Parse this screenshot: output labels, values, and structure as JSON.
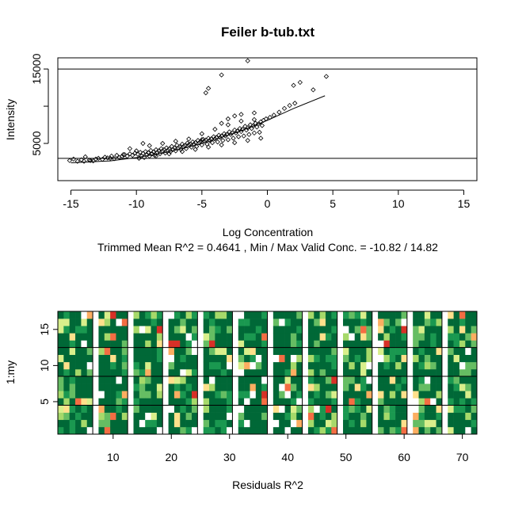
{
  "chart_data": [
    {
      "type": "scatter",
      "title": "Feiler b-tub.txt",
      "xlabel": "Log Concentration",
      "ylabel": "Intensity",
      "subtitle": "Trimmed Mean R^2 = 0.4641 , Min / Max Valid Conc. = -10.82 / 14.82",
      "xlim": [
        -16,
        16
      ],
      "ylim": [
        0,
        16500
      ],
      "x_ticks": [
        -15,
        -10,
        -5,
        0,
        5,
        10,
        15
      ],
      "y_ticks": [
        5000,
        10000,
        15000
      ],
      "y_tick_labels": [
        "5000",
        "",
        "15000"
      ],
      "hlines": [
        15000,
        3000
      ],
      "grid": false,
      "point_marker": "open-diamond",
      "fit_line": {
        "x": [
          -15,
          -12,
          -10,
          -8,
          -6,
          -4,
          -2,
          0,
          2,
          4.4
        ],
        "y": [
          2400,
          2650,
          3100,
          3700,
          4500,
          5500,
          6700,
          8100,
          9700,
          11400
        ]
      },
      "points": {
        "x": [
          -15.1,
          -14.8,
          -14.5,
          -14.2,
          -13.9,
          -13.6,
          -13.3,
          -13.1,
          -12.9,
          -12.6,
          -12.4,
          -12.2,
          -11.9,
          -11.7,
          -11.5,
          -11.3,
          -11.1,
          -10.9,
          -10.7,
          -10.5,
          -10.3,
          -10.1,
          -9.9,
          -9.7,
          -9.5,
          -9.3,
          -9.1,
          -8.9,
          -8.7,
          -8.5,
          -8.3,
          -8.1,
          -7.9,
          -7.7,
          -7.5,
          -7.3,
          -7.1,
          -6.9,
          -6.7,
          -6.5,
          -6.3,
          -6.1,
          -5.9,
          -5.7,
          -5.5,
          -5.3,
          -5.1,
          -4.9,
          -4.7,
          -4.5,
          -4.3,
          -4.1,
          -3.9,
          -3.7,
          -3.5,
          -3.3,
          -3.1,
          -2.9,
          -2.7,
          -2.5,
          -2.3,
          -2.1,
          -1.9,
          -1.7,
          -1.5,
          -1.3,
          -1.1,
          -0.9,
          -0.7,
          -0.5,
          -0.3,
          -0.1,
          0.2,
          0.5,
          0.9,
          1.3,
          1.7,
          2.1,
          -9.6,
          -9.2,
          -8.8,
          -8.4,
          -8.0,
          -7.6,
          -7.2,
          -6.8,
          -6.4,
          -6.0,
          -5.6,
          -5.2,
          -4.8,
          -4.4,
          -4.0,
          -3.6,
          -3.2,
          -2.8,
          -2.4,
          -2.0,
          -1.6,
          -1.2,
          -0.8,
          -0.4,
          -9.4,
          -9.0,
          -8.6,
          -8.2,
          -7.8,
          -7.4,
          -7.0,
          -6.6,
          -6.2,
          -5.8,
          -5.4,
          -5.0,
          -4.6,
          -4.2,
          -3.8,
          -3.4,
          -3.0,
          -2.6,
          -2.2,
          -1.8,
          -1.4,
          -1.0,
          -0.6,
          -10.0,
          -9.0,
          -8.0,
          -7.0,
          -6.0,
          -5.0,
          -4.0,
          -3.0,
          -2.0,
          -1.0,
          -9.8,
          -8.5,
          -7.5,
          -6.5,
          -5.5,
          -4.5,
          -3.5,
          -2.5,
          -1.5,
          -0.5,
          -3.0,
          -2.0,
          -9.5,
          -5.0,
          -4.7,
          -4.5,
          -3.5,
          -2.5,
          -1.0,
          -11.0,
          -12.0,
          -10.5,
          -13.5,
          -14.0,
          2.0,
          2.5,
          3.5,
          4.5,
          -1.5,
          -3.5
        ],
        "y": [
          2700,
          2900,
          2600,
          2800,
          3200,
          2750,
          2650,
          2900,
          3000,
          2850,
          3150,
          3050,
          3300,
          2950,
          3400,
          3100,
          3250,
          3500,
          3300,
          3600,
          3400,
          3700,
          3550,
          3800,
          3650,
          3900,
          3750,
          4050,
          3850,
          4150,
          4000,
          4300,
          4150,
          4400,
          4250,
          4600,
          4400,
          4750,
          4550,
          4900,
          4700,
          5050,
          4900,
          5200,
          5100,
          5400,
          5250,
          5550,
          5450,
          5700,
          5600,
          5900,
          5800,
          6100,
          6000,
          6300,
          6200,
          6550,
          6400,
          6800,
          6650,
          7000,
          6900,
          7300,
          7100,
          7500,
          7350,
          7700,
          7600,
          7900,
          8100,
          8300,
          8500,
          8800,
          9200,
          9700,
          10100,
          10400,
          3300,
          3500,
          3600,
          3800,
          4000,
          4100,
          4200,
          4400,
          4600,
          4800,
          4900,
          5100,
          5300,
          5400,
          5600,
          5800,
          6000,
          6200,
          6400,
          6600,
          6800,
          7000,
          7200,
          7400,
          3100,
          3300,
          3400,
          3600,
          3700,
          3900,
          4000,
          4200,
          4300,
          4500,
          4600,
          4800,
          4900,
          5100,
          5200,
          5400,
          5500,
          5700,
          5900,
          6000,
          6200,
          6400,
          6500,
          4000,
          4700,
          5000,
          5300,
          5600,
          6300,
          6900,
          7500,
          8000,
          8200,
          3000,
          3300,
          3600,
          3900,
          4200,
          4500,
          4800,
          5100,
          5400,
          5700,
          8300,
          8900,
          5000,
          5500,
          11800,
          12400,
          7700,
          8700,
          9100,
          3500,
          3000,
          4300,
          2700,
          2600,
          12800,
          13200,
          12200,
          14000,
          16100,
          14200
        ]
      }
    },
    {
      "type": "heatmap",
      "xlabel": "Residuals R^2",
      "ylabel": "1:my",
      "xlim": [
        0.5,
        72.5
      ],
      "ylim": [
        0.5,
        17.5
      ],
      "x_ticks": [
        10,
        20,
        30,
        40,
        50,
        60,
        70
      ],
      "y_ticks": [
        5,
        10,
        15
      ],
      "hlines": [
        4.5,
        8.5,
        12.5
      ],
      "vlines": [
        6.5,
        12.5,
        18.5,
        24.5,
        30.5,
        36.5,
        42.5,
        48.5,
        54.5,
        60.5,
        66.5
      ],
      "n_cols": 72,
      "n_rows": 17,
      "blank_cols": [
        7,
        13,
        19,
        25,
        31,
        37,
        43,
        49,
        55,
        61,
        67
      ],
      "palette": [
        "#006837",
        "#1a9850",
        "#66bd63",
        "#a6d96a",
        "#d9ef8b",
        "#fee08b",
        "#fdae61",
        "#f46d43",
        "#d73027",
        "#ffffff"
      ],
      "seed": 20240
    }
  ]
}
